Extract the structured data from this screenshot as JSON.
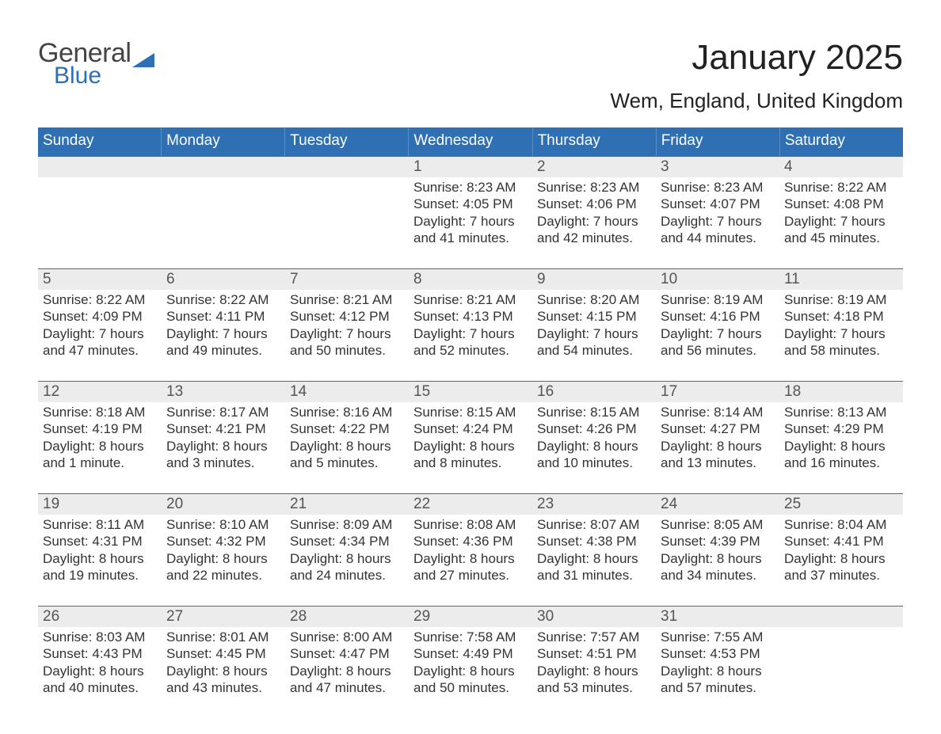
{
  "logo": {
    "text1": "General",
    "text2": "Blue",
    "triangle_color": "#2f6fb3"
  },
  "title": "January 2025",
  "location": "Wem, England, United Kingdom",
  "colors": {
    "header_bg": "#2f6fb3",
    "header_text": "#ffffff",
    "daynum_bg": "#ececec",
    "daynum_text": "#555555",
    "body_text": "#333333",
    "rule": "#2f6fb3",
    "page_bg": "#ffffff"
  },
  "typography": {
    "title_fontsize": 44,
    "location_fontsize": 26,
    "header_fontsize": 19,
    "body_fontsize": 17
  },
  "day_headers": [
    "Sunday",
    "Monday",
    "Tuesday",
    "Wednesday",
    "Thursday",
    "Friday",
    "Saturday"
  ],
  "weeks": [
    [
      {
        "n": "",
        "lines": []
      },
      {
        "n": "",
        "lines": []
      },
      {
        "n": "",
        "lines": []
      },
      {
        "n": "1",
        "lines": [
          "Sunrise: 8:23 AM",
          "Sunset: 4:05 PM",
          "Daylight: 7 hours",
          "and 41 minutes."
        ]
      },
      {
        "n": "2",
        "lines": [
          "Sunrise: 8:23 AM",
          "Sunset: 4:06 PM",
          "Daylight: 7 hours",
          "and 42 minutes."
        ]
      },
      {
        "n": "3",
        "lines": [
          "Sunrise: 8:23 AM",
          "Sunset: 4:07 PM",
          "Daylight: 7 hours",
          "and 44 minutes."
        ]
      },
      {
        "n": "4",
        "lines": [
          "Sunrise: 8:22 AM",
          "Sunset: 4:08 PM",
          "Daylight: 7 hours",
          "and 45 minutes."
        ]
      }
    ],
    [
      {
        "n": "5",
        "lines": [
          "Sunrise: 8:22 AM",
          "Sunset: 4:09 PM",
          "Daylight: 7 hours",
          "and 47 minutes."
        ]
      },
      {
        "n": "6",
        "lines": [
          "Sunrise: 8:22 AM",
          "Sunset: 4:11 PM",
          "Daylight: 7 hours",
          "and 49 minutes."
        ]
      },
      {
        "n": "7",
        "lines": [
          "Sunrise: 8:21 AM",
          "Sunset: 4:12 PM",
          "Daylight: 7 hours",
          "and 50 minutes."
        ]
      },
      {
        "n": "8",
        "lines": [
          "Sunrise: 8:21 AM",
          "Sunset: 4:13 PM",
          "Daylight: 7 hours",
          "and 52 minutes."
        ]
      },
      {
        "n": "9",
        "lines": [
          "Sunrise: 8:20 AM",
          "Sunset: 4:15 PM",
          "Daylight: 7 hours",
          "and 54 minutes."
        ]
      },
      {
        "n": "10",
        "lines": [
          "Sunrise: 8:19 AM",
          "Sunset: 4:16 PM",
          "Daylight: 7 hours",
          "and 56 minutes."
        ]
      },
      {
        "n": "11",
        "lines": [
          "Sunrise: 8:19 AM",
          "Sunset: 4:18 PM",
          "Daylight: 7 hours",
          "and 58 minutes."
        ]
      }
    ],
    [
      {
        "n": "12",
        "lines": [
          "Sunrise: 8:18 AM",
          "Sunset: 4:19 PM",
          "Daylight: 8 hours",
          "and 1 minute."
        ]
      },
      {
        "n": "13",
        "lines": [
          "Sunrise: 8:17 AM",
          "Sunset: 4:21 PM",
          "Daylight: 8 hours",
          "and 3 minutes."
        ]
      },
      {
        "n": "14",
        "lines": [
          "Sunrise: 8:16 AM",
          "Sunset: 4:22 PM",
          "Daylight: 8 hours",
          "and 5 minutes."
        ]
      },
      {
        "n": "15",
        "lines": [
          "Sunrise: 8:15 AM",
          "Sunset: 4:24 PM",
          "Daylight: 8 hours",
          "and 8 minutes."
        ]
      },
      {
        "n": "16",
        "lines": [
          "Sunrise: 8:15 AM",
          "Sunset: 4:26 PM",
          "Daylight: 8 hours",
          "and 10 minutes."
        ]
      },
      {
        "n": "17",
        "lines": [
          "Sunrise: 8:14 AM",
          "Sunset: 4:27 PM",
          "Daylight: 8 hours",
          "and 13 minutes."
        ]
      },
      {
        "n": "18",
        "lines": [
          "Sunrise: 8:13 AM",
          "Sunset: 4:29 PM",
          "Daylight: 8 hours",
          "and 16 minutes."
        ]
      }
    ],
    [
      {
        "n": "19",
        "lines": [
          "Sunrise: 8:11 AM",
          "Sunset: 4:31 PM",
          "Daylight: 8 hours",
          "and 19 minutes."
        ]
      },
      {
        "n": "20",
        "lines": [
          "Sunrise: 8:10 AM",
          "Sunset: 4:32 PM",
          "Daylight: 8 hours",
          "and 22 minutes."
        ]
      },
      {
        "n": "21",
        "lines": [
          "Sunrise: 8:09 AM",
          "Sunset: 4:34 PM",
          "Daylight: 8 hours",
          "and 24 minutes."
        ]
      },
      {
        "n": "22",
        "lines": [
          "Sunrise: 8:08 AM",
          "Sunset: 4:36 PM",
          "Daylight: 8 hours",
          "and 27 minutes."
        ]
      },
      {
        "n": "23",
        "lines": [
          "Sunrise: 8:07 AM",
          "Sunset: 4:38 PM",
          "Daylight: 8 hours",
          "and 31 minutes."
        ]
      },
      {
        "n": "24",
        "lines": [
          "Sunrise: 8:05 AM",
          "Sunset: 4:39 PM",
          "Daylight: 8 hours",
          "and 34 minutes."
        ]
      },
      {
        "n": "25",
        "lines": [
          "Sunrise: 8:04 AM",
          "Sunset: 4:41 PM",
          "Daylight: 8 hours",
          "and 37 minutes."
        ]
      }
    ],
    [
      {
        "n": "26",
        "lines": [
          "Sunrise: 8:03 AM",
          "Sunset: 4:43 PM",
          "Daylight: 8 hours",
          "and 40 minutes."
        ]
      },
      {
        "n": "27",
        "lines": [
          "Sunrise: 8:01 AM",
          "Sunset: 4:45 PM",
          "Daylight: 8 hours",
          "and 43 minutes."
        ]
      },
      {
        "n": "28",
        "lines": [
          "Sunrise: 8:00 AM",
          "Sunset: 4:47 PM",
          "Daylight: 8 hours",
          "and 47 minutes."
        ]
      },
      {
        "n": "29",
        "lines": [
          "Sunrise: 7:58 AM",
          "Sunset: 4:49 PM",
          "Daylight: 8 hours",
          "and 50 minutes."
        ]
      },
      {
        "n": "30",
        "lines": [
          "Sunrise: 7:57 AM",
          "Sunset: 4:51 PM",
          "Daylight: 8 hours",
          "and 53 minutes."
        ]
      },
      {
        "n": "31",
        "lines": [
          "Sunrise: 7:55 AM",
          "Sunset: 4:53 PM",
          "Daylight: 8 hours",
          "and 57 minutes."
        ]
      },
      {
        "n": "",
        "lines": []
      }
    ]
  ]
}
